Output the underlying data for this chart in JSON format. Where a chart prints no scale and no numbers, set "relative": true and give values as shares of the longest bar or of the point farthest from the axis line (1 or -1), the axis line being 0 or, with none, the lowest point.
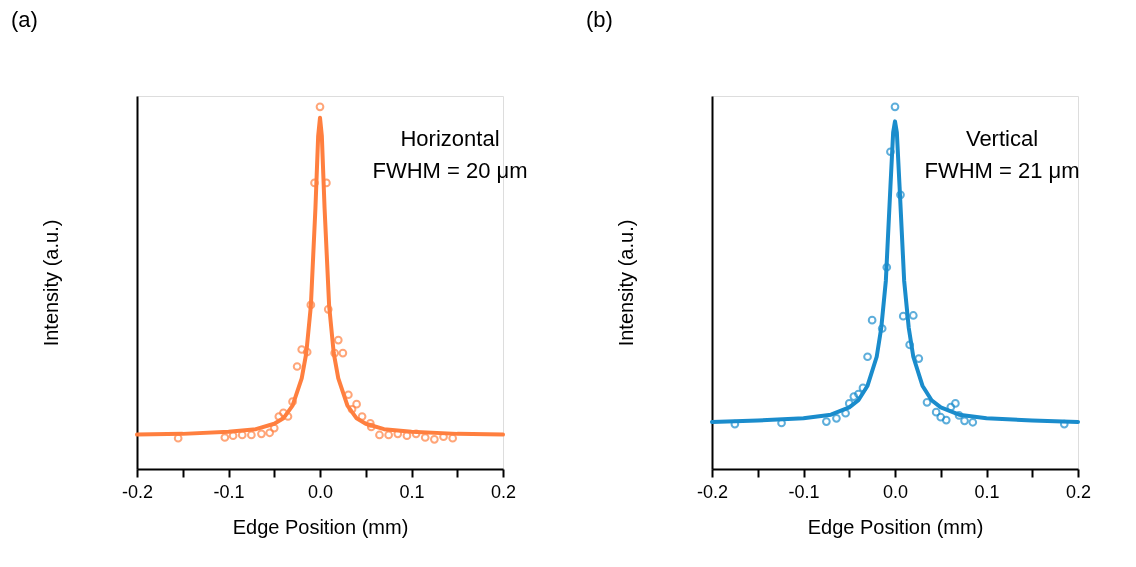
{
  "chart_data": [
    {
      "type": "scatter",
      "title": "(a)",
      "xlabel": "Edge Position (mm)",
      "ylabel": "Intensity (a.u.)",
      "relative": true,
      "grid": false,
      "annotations": [
        "Horizontal",
        "FWHM = 20 μm"
      ],
      "xlim": [
        -0.2,
        0.2
      ],
      "xticks": [
        -0.2,
        {
          "value": -0.15,
          "label": null
        },
        -0.1,
        {
          "value": -0.05,
          "label": null
        },
        {
          "value": 0,
          "label": "0.0"
        },
        {
          "value": 0.05,
          "label": null
        },
        0.1,
        {
          "value": 0.15,
          "label": null
        },
        0.2
      ],
      "series": [
        {
          "marker": "circle",
          "color": "#ff7f3f",
          "x": [
            -0.155,
            -0.104,
            -0.095,
            -0.085,
            -0.075,
            -0.064,
            -0.055,
            -0.05,
            -0.045,
            -0.04,
            -0.035,
            -0.03,
            -0.025,
            -0.02,
            -0.014,
            -0.01,
            -0.006,
            0.0,
            0.007,
            0.009,
            0.016,
            0.02,
            0.025,
            0.031,
            0.035,
            0.04,
            0.046,
            0.055,
            0.056,
            0.065,
            0.075,
            0.085,
            0.095,
            0.105,
            0.115,
            0.125,
            0.135,
            0.145
          ],
          "values": [
            0.085,
            0.087,
            0.092,
            0.094,
            0.094,
            0.097,
            0.1,
            0.113,
            0.145,
            0.155,
            0.145,
            0.186,
            0.283,
            0.33,
            0.323,
            0.453,
            0.79,
            1.0,
            0.79,
            0.441,
            0.32,
            0.356,
            0.32,
            0.205,
            0.165,
            0.179,
            0.145,
            0.126,
            0.116,
            0.094,
            0.094,
            0.097,
            0.092,
            0.097,
            0.087,
            0.082,
            0.089,
            0.085
          ]
        },
        {
          "type": "line",
          "line_style": "solid",
          "color": "#ff7f3f",
          "x": [
            -0.2,
            -0.15,
            -0.1,
            -0.07,
            -0.05,
            -0.04,
            -0.03,
            -0.02,
            -0.015,
            -0.01,
            -0.005,
            -0.002,
            0,
            0.002,
            0.005,
            0.01,
            0.015,
            0.02,
            0.03,
            0.04,
            0.05,
            0.07,
            0.1,
            0.15,
            0.2
          ],
          "values": [
            0.095,
            0.097,
            0.103,
            0.11,
            0.125,
            0.14,
            0.175,
            0.25,
            0.32,
            0.45,
            0.72,
            0.92,
            0.97,
            0.92,
            0.72,
            0.45,
            0.32,
            0.25,
            0.175,
            0.14,
            0.125,
            0.11,
            0.103,
            0.097,
            0.095
          ]
        }
      ]
    },
    {
      "type": "scatter",
      "title": "(b)",
      "xlabel": "Edge Position (mm)",
      "ylabel": "Intensity (a.u.)",
      "relative": true,
      "grid": false,
      "annotations": [
        "Vertical",
        "FWHM = 21 μm"
      ],
      "xlim": [
        -0.2,
        0.2
      ],
      "xticks": [
        -0.2,
        {
          "value": -0.15,
          "label": null
        },
        -0.1,
        {
          "value": -0.05,
          "label": null
        },
        {
          "value": 0,
          "label": "0.0"
        },
        {
          "value": 0.05,
          "label": null
        },
        0.1,
        {
          "value": 0.15,
          "label": null
        },
        0.2
      ],
      "series": [
        {
          "marker": "circle",
          "color": "#1a8ccc",
          "x": [
            -0.175,
            -0.124,
            -0.075,
            -0.064,
            -0.054,
            -0.05,
            -0.045,
            -0.04,
            -0.035,
            -0.03,
            -0.025,
            -0.014,
            -0.009,
            -0.005,
            0.0,
            0.006,
            0.009,
            0.016,
            0.02,
            0.026,
            0.035,
            0.045,
            0.05,
            0.056,
            0.061,
            0.066,
            0.07,
            0.076,
            0.085,
            0.185
          ],
          "values": [
            0.124,
            0.127,
            0.131,
            0.14,
            0.154,
            0.181,
            0.2,
            0.207,
            0.224,
            0.31,
            0.411,
            0.388,
            0.557,
            0.876,
            1.0,
            0.757,
            0.422,
            0.343,
            0.424,
            0.305,
            0.184,
            0.157,
            0.143,
            0.135,
            0.171,
            0.181,
            0.148,
            0.133,
            0.129,
            0.124
          ]
        },
        {
          "type": "line",
          "line_style": "solid",
          "color": "#1a8ccc",
          "x": [
            -0.2,
            -0.15,
            -0.1,
            -0.07,
            -0.05,
            -0.04,
            -0.03,
            -0.02,
            -0.015,
            -0.01,
            -0.005,
            -0.002,
            0,
            0.002,
            0.005,
            0.01,
            0.015,
            0.02,
            0.03,
            0.04,
            0.05,
            0.07,
            0.1,
            0.15,
            0.2
          ],
          "values": [
            0.13,
            0.134,
            0.14,
            0.15,
            0.17,
            0.19,
            0.23,
            0.31,
            0.39,
            0.52,
            0.78,
            0.93,
            0.96,
            0.93,
            0.78,
            0.52,
            0.39,
            0.31,
            0.23,
            0.19,
            0.17,
            0.15,
            0.14,
            0.134,
            0.13
          ]
        }
      ]
    }
  ]
}
